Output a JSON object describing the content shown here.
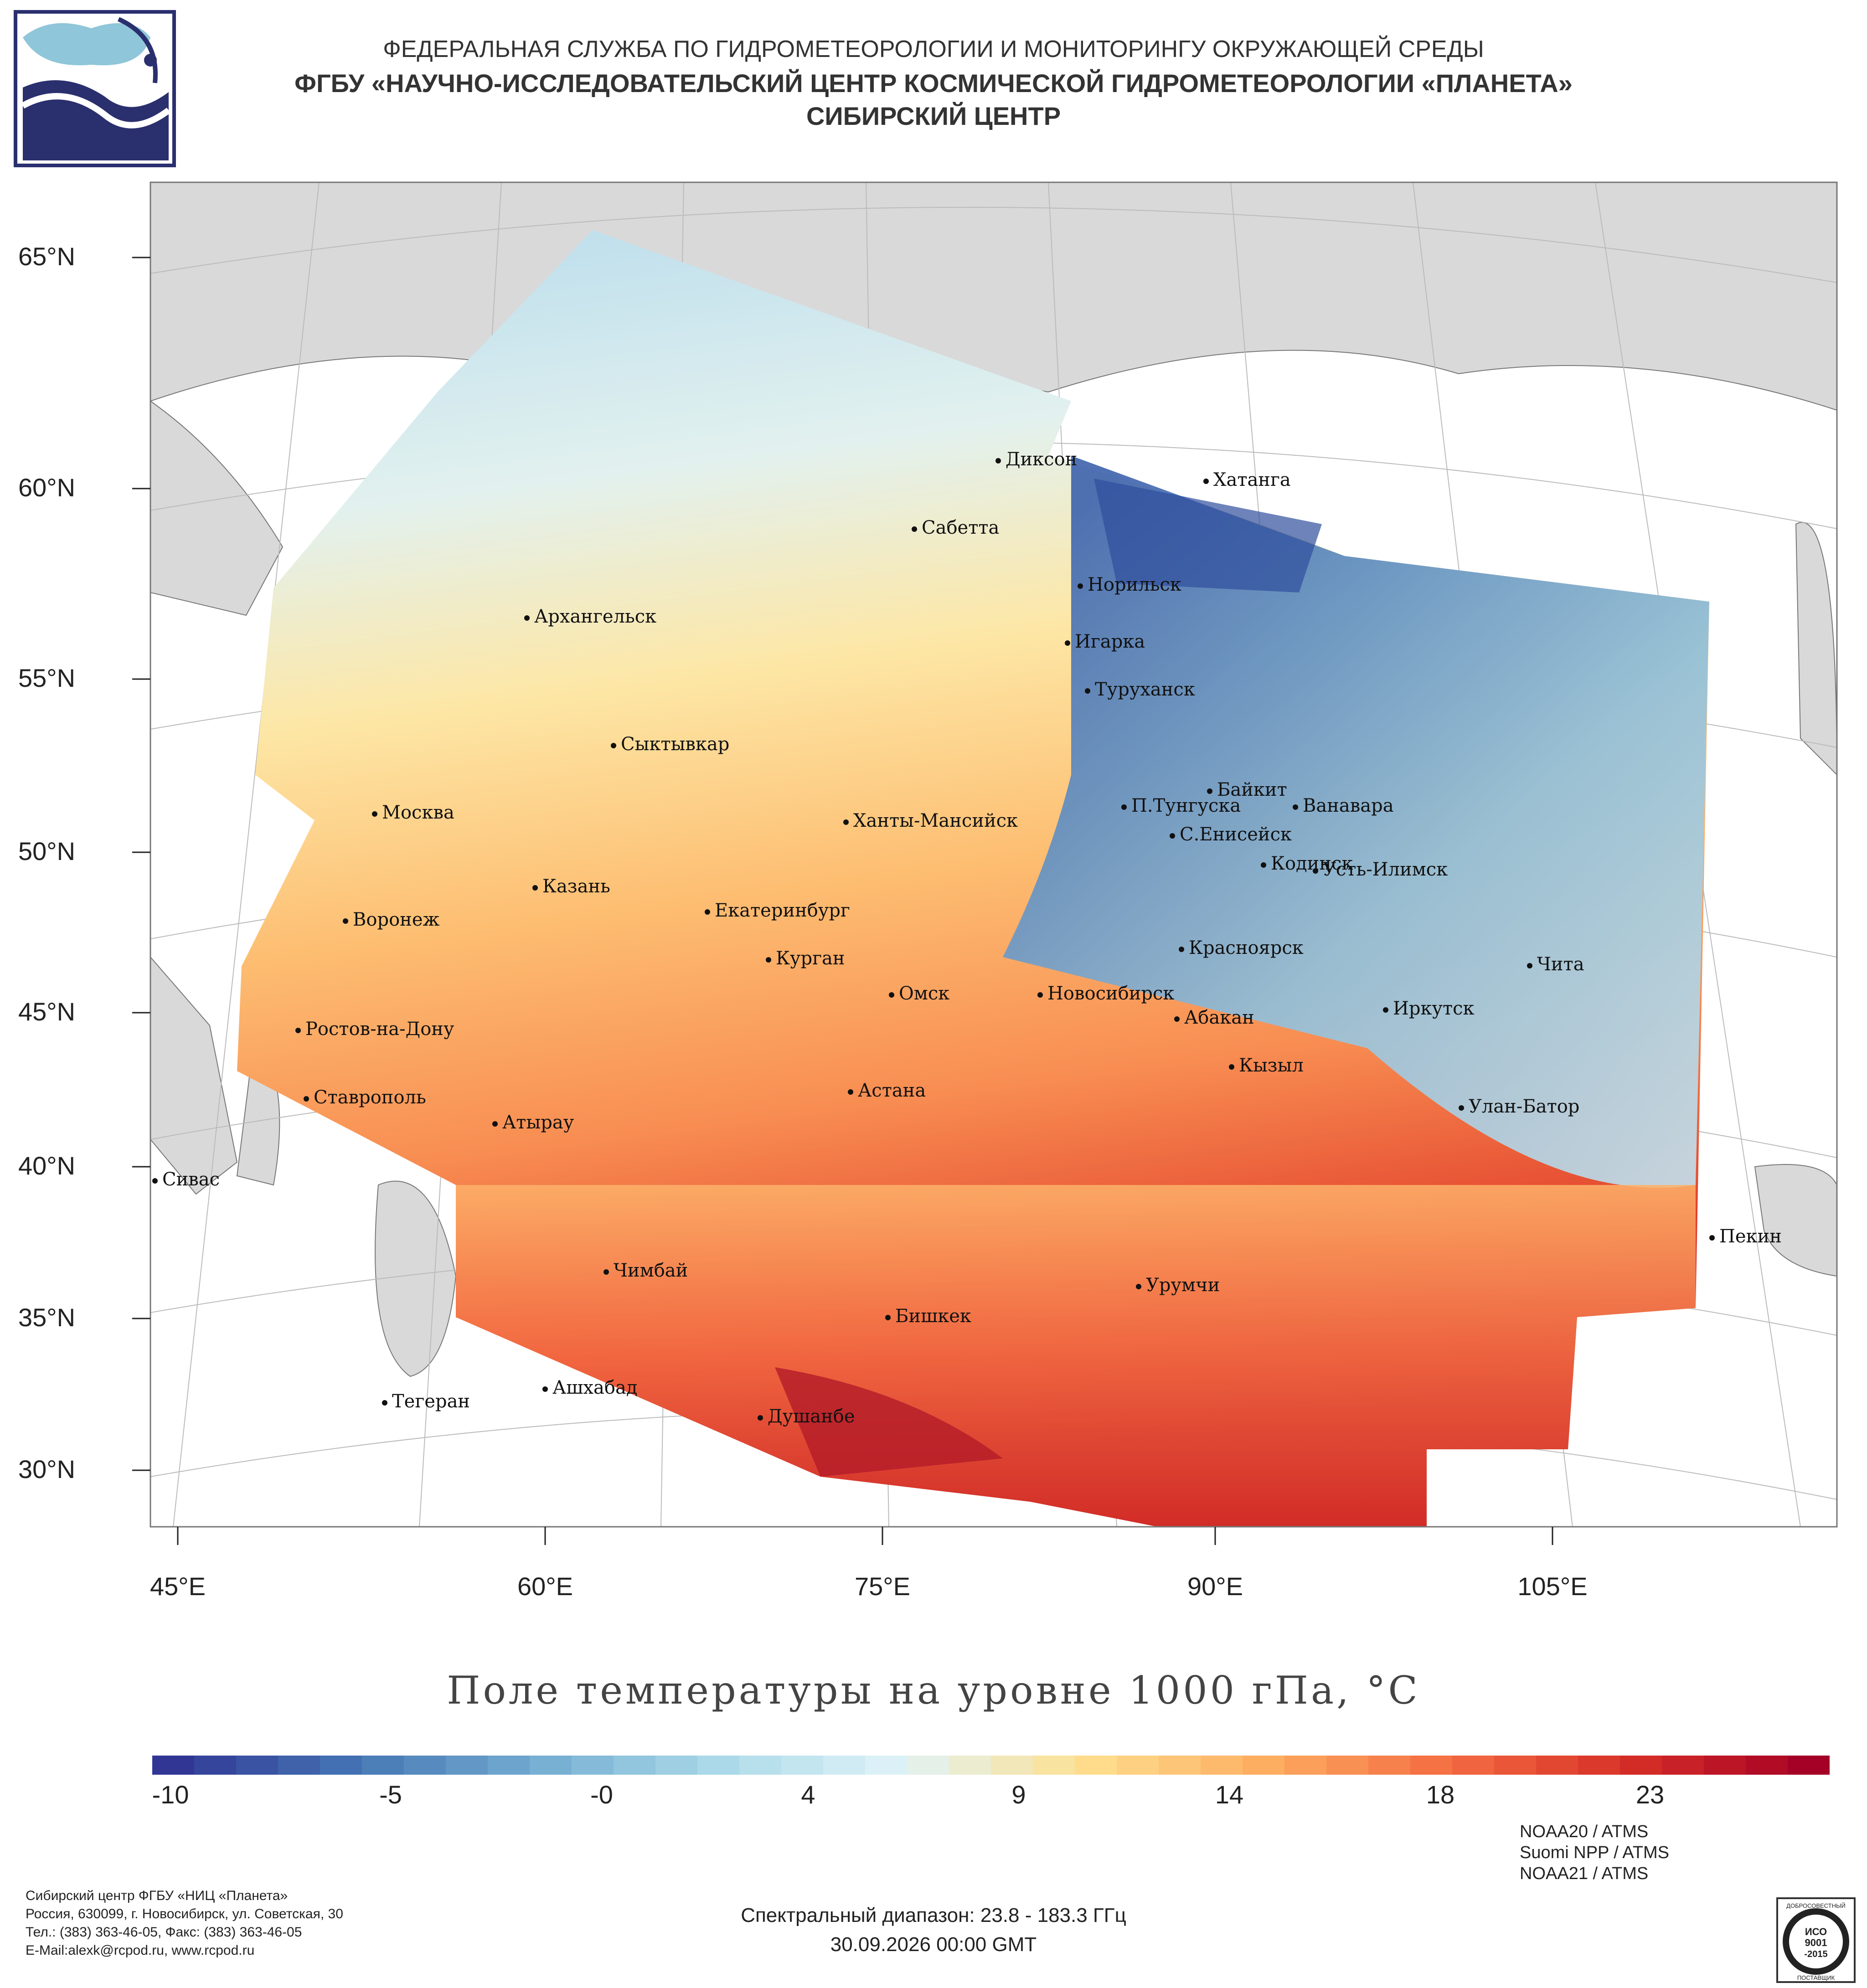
{
  "header": {
    "line1": "ФЕДЕРАЛЬНАЯ СЛУЖБА ПО ГИДРОМЕТЕОРОЛОГИИ И МОНИТОРИНГУ ОКРУЖАЮЩЕЙ СРЕДЫ",
    "line2": "ФГБУ «НАУЧНО-ИССЛЕДОВАТЕЛЬСКИЙ ЦЕНТР КОСМИЧЕСКОЙ ГИДРОМЕТЕОРОЛОГИИ «ПЛАНЕТА»",
    "line3": "СИБИРСКИЙ ЦЕНТР"
  },
  "map": {
    "lat_labels": [
      "65°N",
      "60°N",
      "55°N",
      "50°N",
      "45°N",
      "40°N",
      "35°N",
      "30°N"
    ],
    "lon_labels": [
      "45°E",
      "60°E",
      "75°E",
      "90°E",
      "105°E"
    ],
    "cities": [
      "Диксон",
      "Хатанга",
      "Сабетта",
      "Норильск",
      "Архангельск",
      "Игарка",
      "Туруханск",
      "Сыктывкар",
      "Байкит",
      "П.Тунгуска",
      "Ванавара",
      "Москва",
      "Ханты-Мансийск",
      "С.Енисейск",
      "Кодинск",
      "Усть-Илимск",
      "Казань",
      "Екатеринбург",
      "Воронеж",
      "Красноярск",
      "Курган",
      "Чита",
      "Омск",
      "Новосибирск",
      "Иркутск",
      "Абакан",
      "Ростов-на-Дону",
      "Кызыл",
      "Астана",
      "Ставрополь",
      "Улан-Батор",
      "Атырау",
      "Сивас",
      "Пекин",
      "Чимбай",
      "Урумчи",
      "Бишкек",
      "Ашхабад",
      "Тегеран",
      "Душанбе"
    ]
  },
  "title": "Поле температуры на уровне 1000 гПа, °C",
  "colorbar": {
    "ticks": [
      "-10",
      "-5",
      "-0",
      "4",
      "9",
      "14",
      "18",
      "23"
    ],
    "colors": [
      "#313695",
      "#4575b4",
      "#74add1",
      "#abd9e9",
      "#e0f3f8",
      "#fee090",
      "#fdae61",
      "#f46d43",
      "#d73027",
      "#a50026"
    ]
  },
  "footer": {
    "org_lines": [
      "Сибирский центр ФГБУ «НИЦ «Планета»",
      "Россия, 630099, г. Новосибирск, ул. Советская, 30",
      "Тел.: (383) 363-46-05, Факс: (383) 363-46-05",
      "E-Mail:alexk@rcpod.ru, www.rcpod.ru"
    ],
    "satellites": [
      "NOAA20 / ATMS",
      "Suomi NPP / ATMS",
      "NOAA21 / ATMS"
    ],
    "spectral": "Спектральный диапазон: 23.8 - 183.3 ГГц",
    "datetime": "30.09.2026 00:00 GMT",
    "iso_badge": [
      "ДОБРОСОВЕСТНЫЙ",
      "ИСО",
      "9001",
      "-2015",
      "ПОСТАВЩИК"
    ]
  }
}
